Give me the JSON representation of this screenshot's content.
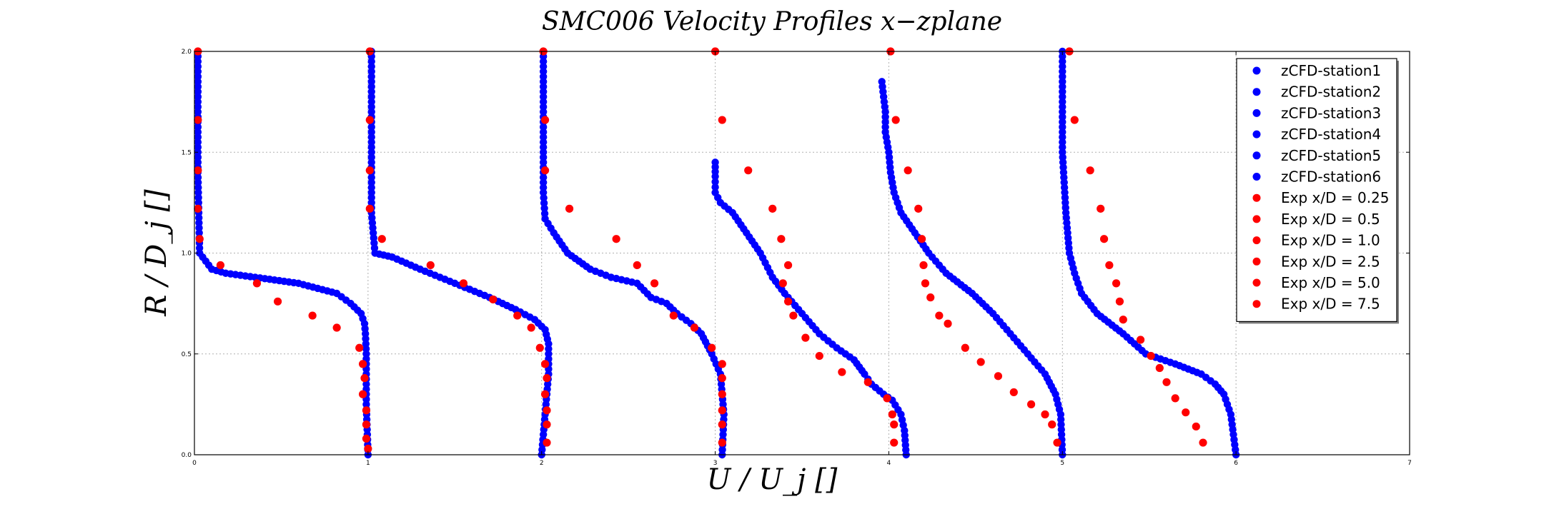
{
  "chart_data": {
    "type": "scatter",
    "title": "SMC006 Velocity Profiles x−zplane",
    "xlabel": "U / U_j  []",
    "ylabel": "R / D_j  []",
    "xlim": [
      0,
      7
    ],
    "ylim": [
      0,
      2
    ],
    "xticks": [
      "0",
      "1",
      "2",
      "3",
      "4",
      "5",
      "6",
      "7"
    ],
    "yticks": [
      "0.0",
      "0.5",
      "1.0",
      "1.5",
      "2.0"
    ],
    "grid": true,
    "legend_position": "top-right",
    "colors": {
      "cfd": "#0000ff",
      "exp": "#ff0000",
      "grid": "#b0b0b0"
    },
    "cfd_series": [
      {
        "name": "zCFD-station1",
        "offset": 0,
        "profile": [
          [
            0,
            1.0
          ],
          [
            0.25,
            0.99
          ],
          [
            0.5,
            0.99
          ],
          [
            0.6,
            0.985
          ],
          [
            0.65,
            0.98
          ],
          [
            0.7,
            0.96
          ],
          [
            0.75,
            0.9
          ],
          [
            0.8,
            0.82
          ],
          [
            0.85,
            0.6
          ],
          [
            0.88,
            0.35
          ],
          [
            0.9,
            0.18
          ],
          [
            0.92,
            0.1
          ],
          [
            1.0,
            0.03
          ],
          [
            1.4,
            0.02
          ],
          [
            2.0,
            0.02
          ]
        ]
      },
      {
        "name": "zCFD-station2",
        "offset": 1,
        "profile": [
          [
            0,
            1.0
          ],
          [
            0.2,
            1.02
          ],
          [
            0.4,
            1.04
          ],
          [
            0.55,
            1.04
          ],
          [
            0.62,
            1.02
          ],
          [
            0.67,
            0.96
          ],
          [
            0.72,
            0.85
          ],
          [
            0.78,
            0.7
          ],
          [
            0.85,
            0.5
          ],
          [
            0.92,
            0.3
          ],
          [
            0.98,
            0.14
          ],
          [
            1.0,
            0.04
          ],
          [
            1.2,
            0.02
          ],
          [
            2.0,
            0.02
          ]
        ]
      },
      {
        "name": "zCFD-station3",
        "offset": 2,
        "profile": [
          [
            0,
            1.04
          ],
          [
            0.2,
            1.05
          ],
          [
            0.3,
            1.04
          ],
          [
            0.4,
            1.03
          ],
          [
            0.5,
            0.98
          ],
          [
            0.6,
            0.92
          ],
          [
            0.65,
            0.86
          ],
          [
            0.7,
            0.78
          ],
          [
            0.75,
            0.72
          ],
          [
            0.78,
            0.63
          ],
          [
            0.85,
            0.55
          ],
          [
            0.88,
            0.4
          ],
          [
            0.92,
            0.28
          ],
          [
            1.0,
            0.15
          ],
          [
            1.1,
            0.07
          ],
          [
            1.17,
            0.02
          ],
          [
            1.3,
            0.01
          ],
          [
            2.0,
            0.01
          ]
        ]
      },
      {
        "name": "zCFD-station4",
        "offset": 3,
        "profile": [
          [
            0,
            1.1
          ],
          [
            0.12,
            1.09
          ],
          [
            0.2,
            1.07
          ],
          [
            0.27,
            1.02
          ],
          [
            0.3,
            0.97
          ],
          [
            0.35,
            0.9
          ],
          [
            0.4,
            0.86
          ],
          [
            0.47,
            0.8
          ],
          [
            0.53,
            0.7
          ],
          [
            0.6,
            0.6
          ],
          [
            0.7,
            0.5
          ],
          [
            0.8,
            0.4
          ],
          [
            0.88,
            0.33
          ],
          [
            1.0,
            0.26
          ],
          [
            1.1,
            0.18
          ],
          [
            1.2,
            0.1
          ],
          [
            1.25,
            0.03
          ],
          [
            1.3,
            0.0
          ],
          [
            1.38,
            0.0
          ],
          [
            1.45,
            0.0
          ]
        ]
      },
      {
        "name": "zCFD-station5",
        "offset": 4,
        "profile": [
          [
            0,
            1.0
          ],
          [
            0.2,
            0.99
          ],
          [
            0.3,
            0.96
          ],
          [
            0.4,
            0.9
          ],
          [
            0.5,
            0.8
          ],
          [
            0.6,
            0.7
          ],
          [
            0.7,
            0.6
          ],
          [
            0.8,
            0.48
          ],
          [
            0.9,
            0.33
          ],
          [
            1.0,
            0.23
          ],
          [
            1.1,
            0.15
          ],
          [
            1.2,
            0.07
          ],
          [
            1.3,
            0.03
          ],
          [
            1.4,
            0.01
          ],
          [
            1.5,
            0.0
          ],
          [
            1.6,
            -0.02
          ],
          [
            1.7,
            -0.02
          ],
          [
            1.85,
            -0.04
          ]
        ]
      },
      {
        "name": "zCFD-station6",
        "offset": 5,
        "profile": [
          [
            0,
            1.0
          ],
          [
            0.2,
            0.97
          ],
          [
            0.3,
            0.93
          ],
          [
            0.35,
            0.88
          ],
          [
            0.4,
            0.8
          ],
          [
            0.45,
            0.65
          ],
          [
            0.5,
            0.48
          ],
          [
            0.6,
            0.35
          ],
          [
            0.7,
            0.2
          ],
          [
            0.8,
            0.11
          ],
          [
            0.9,
            0.07
          ],
          [
            1.0,
            0.04
          ],
          [
            1.2,
            0.02
          ],
          [
            1.5,
            0.0
          ],
          [
            2.0,
            0.0
          ]
        ]
      }
    ],
    "exp_series": [
      {
        "name": "Exp x/D = 0.25",
        "points": [
          [
            1.0,
            0.03
          ],
          [
            0.99,
            0.08
          ],
          [
            0.99,
            0.15
          ],
          [
            0.99,
            0.22
          ],
          [
            0.97,
            0.3
          ],
          [
            0.98,
            0.38
          ],
          [
            0.97,
            0.45
          ],
          [
            0.95,
            0.53
          ],
          [
            0.82,
            0.63
          ],
          [
            0.68,
            0.69
          ],
          [
            0.48,
            0.76
          ],
          [
            0.36,
            0.85
          ],
          [
            0.15,
            0.94
          ],
          [
            0.03,
            1.07
          ],
          [
            0.02,
            1.22
          ],
          [
            0.02,
            1.41
          ],
          [
            0.02,
            1.66
          ],
          [
            0.02,
            2.0
          ]
        ]
      },
      {
        "name": "Exp x/D = 0.5",
        "points": [
          [
            2.03,
            0.06
          ],
          [
            2.03,
            0.15
          ],
          [
            2.03,
            0.22
          ],
          [
            2.02,
            0.3
          ],
          [
            2.03,
            0.38
          ],
          [
            2.02,
            0.45
          ],
          [
            1.99,
            0.53
          ],
          [
            1.94,
            0.63
          ],
          [
            1.86,
            0.69
          ],
          [
            1.72,
            0.77
          ],
          [
            1.55,
            0.85
          ],
          [
            1.36,
            0.94
          ],
          [
            1.08,
            1.07
          ],
          [
            1.01,
            1.22
          ],
          [
            1.01,
            1.41
          ],
          [
            1.01,
            1.66
          ],
          [
            1.01,
            2.0
          ]
        ]
      },
      {
        "name": "Exp x/D = 1.0",
        "points": [
          [
            3.04,
            0.06
          ],
          [
            3.04,
            0.15
          ],
          [
            3.04,
            0.22
          ],
          [
            3.04,
            0.3
          ],
          [
            3.04,
            0.38
          ],
          [
            3.04,
            0.45
          ],
          [
            2.98,
            0.53
          ],
          [
            2.88,
            0.63
          ],
          [
            2.76,
            0.69
          ],
          [
            2.65,
            0.85
          ],
          [
            2.55,
            0.94
          ],
          [
            2.43,
            1.07
          ],
          [
            2.16,
            1.22
          ],
          [
            2.02,
            1.41
          ],
          [
            2.02,
            1.66
          ],
          [
            2.01,
            2.0
          ]
        ]
      },
      {
        "name": "Exp x/D = 2.5",
        "points": [
          [
            4.03,
            0.06
          ],
          [
            4.03,
            0.15
          ],
          [
            4.02,
            0.2
          ],
          [
            3.99,
            0.28
          ],
          [
            3.88,
            0.36
          ],
          [
            3.73,
            0.41
          ],
          [
            3.6,
            0.49
          ],
          [
            3.52,
            0.58
          ],
          [
            3.45,
            0.69
          ],
          [
            3.42,
            0.76
          ],
          [
            3.39,
            0.85
          ],
          [
            3.42,
            0.94
          ],
          [
            3.38,
            1.07
          ],
          [
            3.33,
            1.22
          ],
          [
            3.19,
            1.41
          ],
          [
            3.04,
            1.66
          ],
          [
            3.0,
            2.0
          ]
        ]
      },
      {
        "name": "Exp x/D = 5.0",
        "points": [
          [
            4.97,
            0.06
          ],
          [
            4.94,
            0.15
          ],
          [
            4.9,
            0.2
          ],
          [
            4.82,
            0.25
          ],
          [
            4.72,
            0.31
          ],
          [
            4.63,
            0.39
          ],
          [
            4.53,
            0.46
          ],
          [
            4.44,
            0.53
          ],
          [
            4.34,
            0.65
          ],
          [
            4.29,
            0.69
          ],
          [
            4.24,
            0.78
          ],
          [
            4.21,
            0.85
          ],
          [
            4.2,
            0.94
          ],
          [
            4.19,
            1.07
          ],
          [
            4.17,
            1.22
          ],
          [
            4.11,
            1.41
          ],
          [
            4.04,
            1.66
          ],
          [
            4.01,
            2.0
          ]
        ]
      },
      {
        "name": "Exp x/D = 7.5",
        "points": [
          [
            5.81,
            0.06
          ],
          [
            5.77,
            0.14
          ],
          [
            5.71,
            0.21
          ],
          [
            5.65,
            0.28
          ],
          [
            5.6,
            0.36
          ],
          [
            5.56,
            0.43
          ],
          [
            5.51,
            0.49
          ],
          [
            5.45,
            0.57
          ],
          [
            5.35,
            0.67
          ],
          [
            5.33,
            0.76
          ],
          [
            5.31,
            0.85
          ],
          [
            5.27,
            0.94
          ],
          [
            5.24,
            1.07
          ],
          [
            5.22,
            1.22
          ],
          [
            5.16,
            1.41
          ],
          [
            5.07,
            1.66
          ],
          [
            5.04,
            2.0
          ]
        ]
      }
    ],
    "legend": [
      "zCFD-station1",
      "zCFD-station2",
      "zCFD-station3",
      "zCFD-station4",
      "zCFD-station5",
      "zCFD-station6",
      "Exp x/D = 0.25",
      "Exp x/D = 0.5",
      "Exp x/D = 1.0",
      "Exp x/D = 2.5",
      "Exp x/D = 5.0",
      "Exp x/D = 7.5"
    ]
  }
}
